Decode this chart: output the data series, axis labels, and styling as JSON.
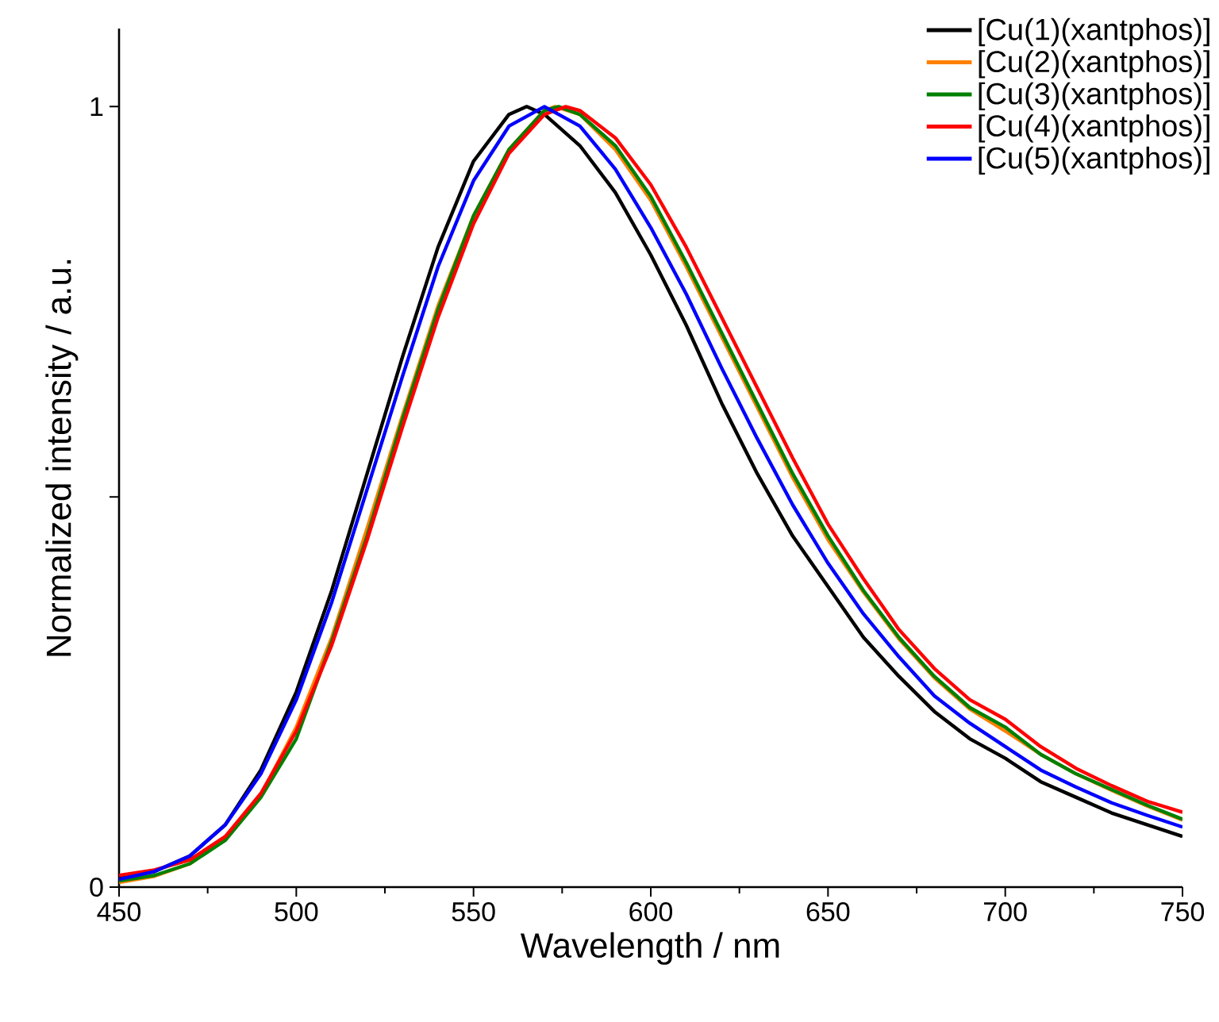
{
  "chart_data": {
    "type": "line",
    "xlabel": "Wavelength / nm",
    "ylabel": "Normalized intensity / a.u.",
    "xlim": [
      450,
      750
    ],
    "ylim": [
      0,
      1.1
    ],
    "xticks": [
      450,
      500,
      550,
      600,
      650,
      700,
      750
    ],
    "yticks": [
      0,
      {
        "value": 0.5,
        "label": null
      },
      1
    ],
    "grid": false,
    "legend": "top right",
    "marker": "none",
    "line_style": "solid",
    "series": [
      {
        "name": "[Cu(1)(xantphos)]",
        "color": "#000000",
        "x": [
          450,
          460,
          470,
          480,
          490,
          500,
          510,
          520,
          530,
          540,
          550,
          560,
          565,
          570,
          580,
          590,
          600,
          610,
          620,
          630,
          640,
          650,
          660,
          670,
          680,
          690,
          700,
          710,
          720,
          730,
          740,
          750
        ],
        "values": [
          0.012,
          0.02,
          0.04,
          0.08,
          0.15,
          0.25,
          0.38,
          0.53,
          0.68,
          0.82,
          0.93,
          0.99,
          1.0,
          0.99,
          0.95,
          0.89,
          0.81,
          0.72,
          0.62,
          0.53,
          0.45,
          0.385,
          0.32,
          0.27,
          0.225,
          0.19,
          0.165,
          0.135,
          0.115,
          0.095,
          0.08,
          0.065
        ]
      },
      {
        "name": "[Cu(2)(xantphos)]",
        "color": "#ff8000",
        "x": [
          450,
          460,
          470,
          480,
          490,
          500,
          510,
          520,
          530,
          540,
          550,
          560,
          570,
          573,
          580,
          590,
          600,
          610,
          620,
          630,
          640,
          650,
          660,
          670,
          680,
          690,
          700,
          710,
          720,
          730,
          740,
          750
        ],
        "values": [
          0.006,
          0.014,
          0.03,
          0.062,
          0.118,
          0.205,
          0.32,
          0.46,
          0.605,
          0.745,
          0.86,
          0.945,
          0.995,
          1.0,
          0.99,
          0.945,
          0.88,
          0.795,
          0.705,
          0.615,
          0.525,
          0.445,
          0.378,
          0.318,
          0.268,
          0.228,
          0.2,
          0.17,
          0.145,
          0.124,
          0.104,
          0.086
        ]
      },
      {
        "name": "[Cu(3)(xantphos)]",
        "color": "#008000",
        "x": [
          450,
          460,
          470,
          480,
          490,
          500,
          510,
          520,
          530,
          540,
          550,
          560,
          570,
          574,
          580,
          590,
          600,
          610,
          620,
          630,
          640,
          650,
          660,
          670,
          680,
          690,
          700,
          710,
          720,
          730,
          740,
          750
        ],
        "values": [
          0.008,
          0.015,
          0.03,
          0.06,
          0.115,
          0.19,
          0.315,
          0.45,
          0.6,
          0.74,
          0.86,
          0.945,
          0.995,
          1.0,
          0.99,
          0.95,
          0.885,
          0.8,
          0.71,
          0.62,
          0.53,
          0.45,
          0.38,
          0.32,
          0.27,
          0.23,
          0.205,
          0.17,
          0.145,
          0.125,
          0.105,
          0.087
        ]
      },
      {
        "name": "[Cu(4)(xantphos)]",
        "color": "#ff0000",
        "x": [
          450,
          460,
          470,
          480,
          490,
          500,
          510,
          520,
          530,
          540,
          550,
          560,
          570,
          576,
          580,
          590,
          600,
          610,
          620,
          630,
          640,
          650,
          660,
          670,
          680,
          690,
          700,
          710,
          720,
          730,
          740,
          750
        ],
        "values": [
          0.015,
          0.022,
          0.035,
          0.065,
          0.12,
          0.2,
          0.31,
          0.445,
          0.59,
          0.73,
          0.85,
          0.94,
          0.99,
          1.0,
          0.995,
          0.96,
          0.9,
          0.82,
          0.73,
          0.64,
          0.55,
          0.465,
          0.395,
          0.33,
          0.28,
          0.24,
          0.215,
          0.18,
          0.152,
          0.13,
          0.11,
          0.096
        ]
      },
      {
        "name": "[Cu(5)(xantphos)]",
        "color": "#0000ff",
        "x": [
          450,
          460,
          470,
          480,
          490,
          500,
          510,
          520,
          530,
          540,
          550,
          560,
          570,
          580,
          590,
          600,
          610,
          620,
          630,
          640,
          650,
          660,
          670,
          680,
          690,
          700,
          710,
          720,
          730,
          740,
          750
        ],
        "values": [
          0.01,
          0.02,
          0.04,
          0.08,
          0.145,
          0.24,
          0.365,
          0.51,
          0.655,
          0.795,
          0.905,
          0.975,
          1.0,
          0.975,
          0.92,
          0.845,
          0.76,
          0.665,
          0.575,
          0.49,
          0.415,
          0.35,
          0.295,
          0.245,
          0.21,
          0.18,
          0.15,
          0.128,
          0.108,
          0.092,
          0.077
        ]
      }
    ]
  }
}
